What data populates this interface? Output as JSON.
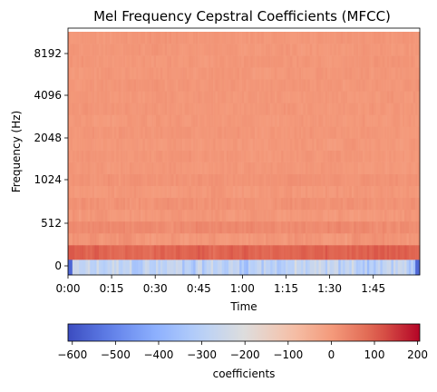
{
  "chart_data": {
    "type": "heatmap",
    "title": "Mel Frequency Cepstral Coefficients (MFCC)",
    "xlabel": "Time",
    "ylabel": "Frequency (Hz)",
    "x_ticks": [
      "0:00",
      "0:15",
      "0:30",
      "0:45",
      "1:00",
      "1:15",
      "1:30",
      "1:45"
    ],
    "x_tick_seconds": [
      0,
      15,
      30,
      45,
      60,
      75,
      90,
      105
    ],
    "x_range_seconds": [
      0,
      121
    ],
    "y_ticks": [
      "0",
      "512",
      "1024",
      "2048",
      "4096",
      "8192"
    ],
    "y_scale": "mel",
    "colormap": "coolwarm",
    "colorbar": {
      "label": "coefficients",
      "ticks": [
        "−600",
        "−500",
        "−400",
        "−300",
        "−200",
        "−100",
        "0",
        "100",
        "200"
      ],
      "tick_values": [
        -600,
        -500,
        -400,
        -300,
        -200,
        -100,
        0,
        100,
        200
      ],
      "range": [
        -610,
        205
      ],
      "orientation": "horizontal"
    },
    "rows_bottom_to_top": [
      {
        "band": "0",
        "approx_value": -290,
        "variation": 110
      },
      {
        "band": "1",
        "approx_value": 95,
        "variation": 25
      },
      {
        "band": "2",
        "approx_value": 10,
        "variation": 20
      },
      {
        "band": "3",
        "approx_value": 30,
        "variation": 18
      },
      {
        "band": "4",
        "approx_value": 5,
        "variation": 15
      },
      {
        "band": "5",
        "approx_value": 15,
        "variation": 15
      },
      {
        "band": "6",
        "approx_value": 5,
        "variation": 15
      },
      {
        "band": "7",
        "approx_value": 12,
        "variation": 12
      },
      {
        "band": "8",
        "approx_value": 5,
        "variation": 12
      },
      {
        "band": "9",
        "approx_value": 8,
        "variation": 12
      },
      {
        "band": "10",
        "approx_value": 4,
        "variation": 12
      },
      {
        "band": "11",
        "approx_value": 8,
        "variation": 12
      },
      {
        "band": "12",
        "approx_value": 5,
        "variation": 12
      },
      {
        "band": "13",
        "approx_value": 8,
        "variation": 12
      },
      {
        "band": "14",
        "approx_value": 6,
        "variation": 12
      },
      {
        "band": "15",
        "approx_value": 8,
        "variation": 12
      },
      {
        "band": "16",
        "approx_value": 6,
        "variation": 12
      },
      {
        "band": "17",
        "approx_value": 8,
        "variation": 12
      },
      {
        "band": "18",
        "approx_value": 6,
        "variation": 12
      },
      {
        "band": "19",
        "approx_value": 8,
        "variation": 12
      }
    ]
  }
}
